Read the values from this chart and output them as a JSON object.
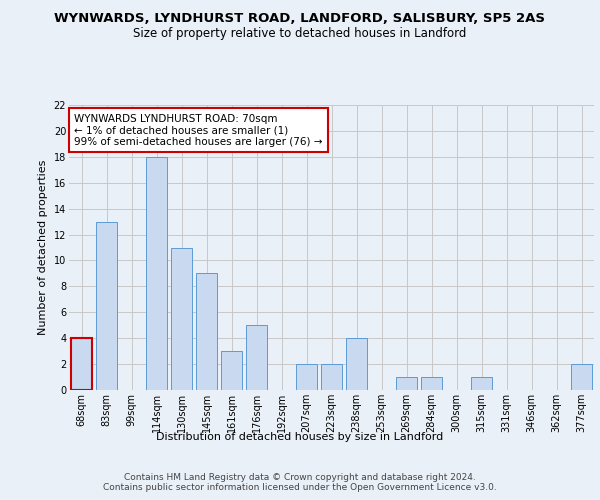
{
  "title": "WYNWARDS, LYNDHURST ROAD, LANDFORD, SALISBURY, SP5 2AS",
  "subtitle": "Size of property relative to detached houses in Landford",
  "xlabel": "Distribution of detached houses by size in Landford",
  "ylabel": "Number of detached properties",
  "categories": [
    "68sqm",
    "83sqm",
    "99sqm",
    "114sqm",
    "130sqm",
    "145sqm",
    "161sqm",
    "176sqm",
    "192sqm",
    "207sqm",
    "223sqm",
    "238sqm",
    "253sqm",
    "269sqm",
    "284sqm",
    "300sqm",
    "315sqm",
    "331sqm",
    "346sqm",
    "362sqm",
    "377sqm"
  ],
  "values": [
    4,
    13,
    0,
    18,
    11,
    9,
    3,
    5,
    0,
    2,
    2,
    4,
    0,
    1,
    1,
    0,
    1,
    0,
    0,
    0,
    2
  ],
  "bar_color": "#c9d9f0",
  "bar_edgecolor": "#5b9bd5",
  "highlight_bar_index": 0,
  "highlight_bar_edgecolor": "#cc0000",
  "ylim": [
    0,
    22
  ],
  "yticks": [
    0,
    2,
    4,
    6,
    8,
    10,
    12,
    14,
    16,
    18,
    20,
    22
  ],
  "annotation_text": "WYNWARDS LYNDHURST ROAD: 70sqm\n← 1% of detached houses are smaller (1)\n99% of semi-detached houses are larger (76) →",
  "annotation_box_color": "#ffffff",
  "annotation_box_edgecolor": "#cc0000",
  "footer_text": "Contains HM Land Registry data © Crown copyright and database right 2024.\nContains public sector information licensed under the Open Government Licence v3.0.",
  "background_color": "#eaf0f8",
  "plot_background_color": "#eaf0f8",
  "grid_color": "#c8c8c8",
  "title_fontsize": 9.5,
  "subtitle_fontsize": 8.5,
  "axis_label_fontsize": 8,
  "tick_fontsize": 7,
  "annotation_fontsize": 7.5,
  "footer_fontsize": 6.5
}
